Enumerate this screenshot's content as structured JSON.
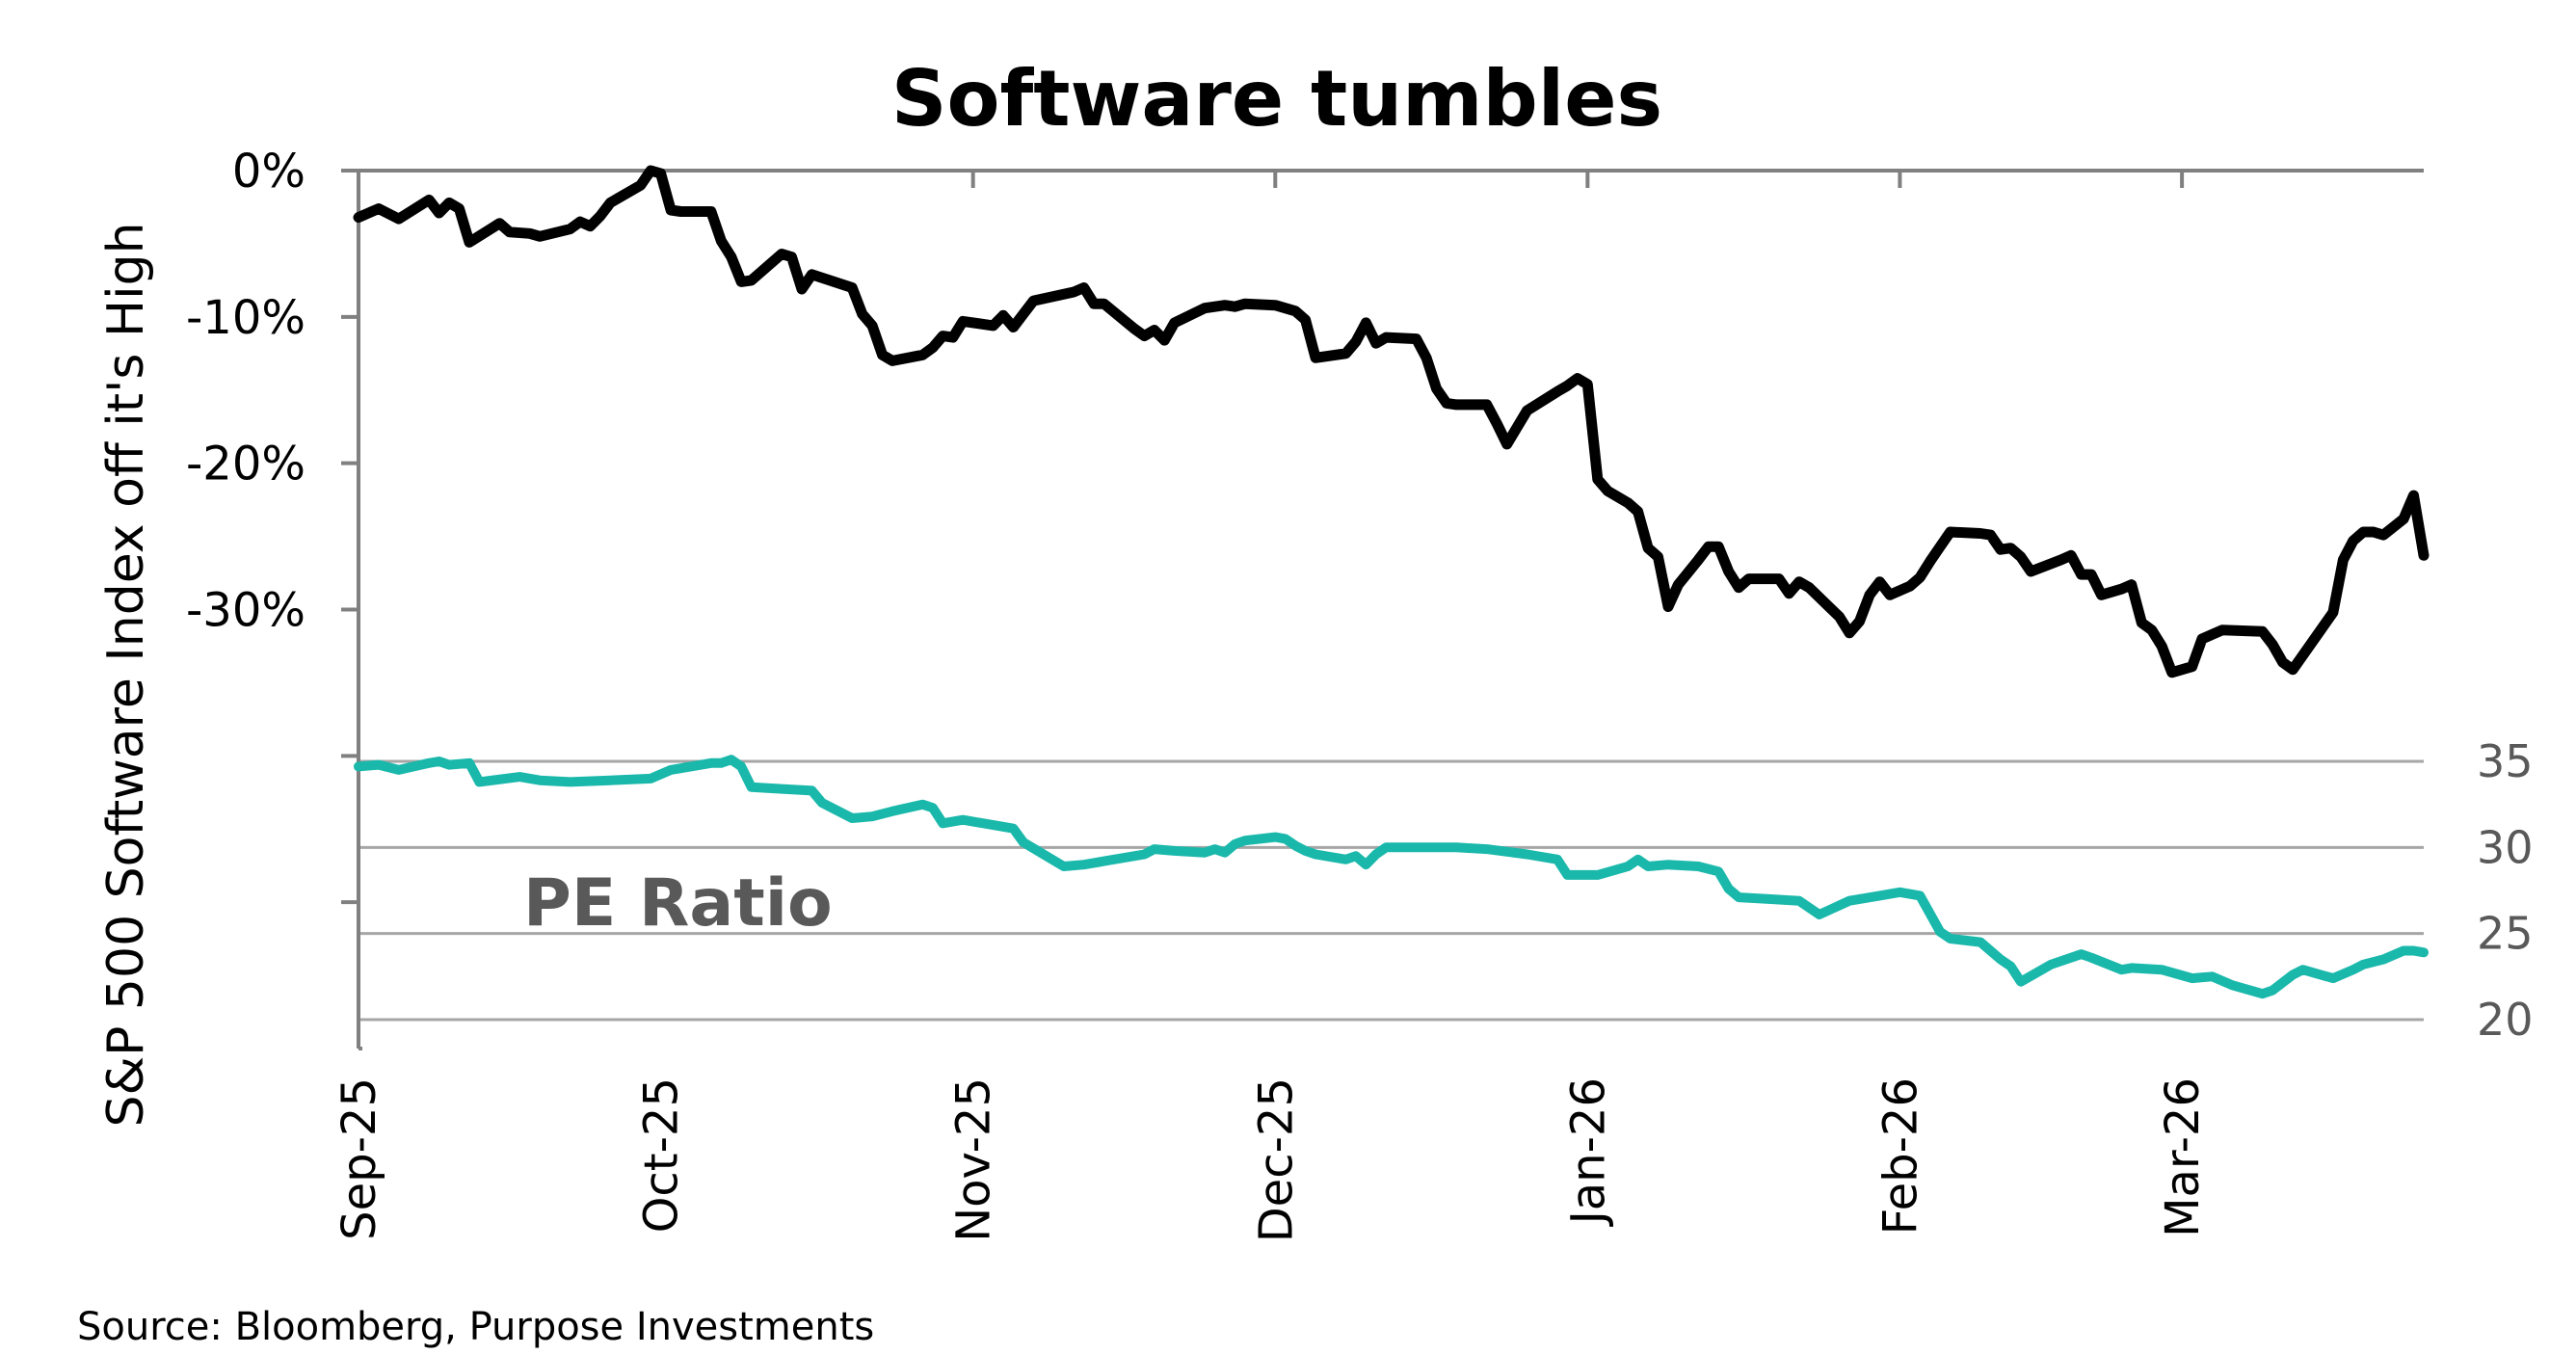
{
  "chart_data": {
    "type": "line",
    "title": "Software tumbles",
    "ylabel": "S&P 500 Software Index off it's High",
    "source": "Source: Bloomberg, Purpose Investments",
    "annotation": "PE Ratio",
    "x_tick_labels": [
      "Sep-25",
      "Oct-25",
      "Nov-25",
      "Dec-25",
      "Jan-26",
      "Feb-26",
      "Mar-26"
    ],
    "x_tick_dates": [
      "2025-09-01",
      "2025-10-01",
      "2025-11-01",
      "2025-12-01",
      "2026-01-01",
      "2026-02-01",
      "2026-03-01"
    ],
    "x_range": [
      "2025-09-01",
      "2026-03-25"
    ],
    "y_left": {
      "ticks": [
        0,
        -10,
        -20,
        -30
      ],
      "tick_labels": [
        "0%",
        "-10%",
        "-20%",
        "-30%"
      ],
      "range": [
        -60,
        0
      ]
    },
    "y_right": {
      "ticks": [
        20,
        25,
        30,
        35
      ],
      "tick_labels": [
        "20",
        "25",
        "30",
        "35"
      ]
    },
    "grid": "horizontal lines at right-axis ticks",
    "series": [
      {
        "color": "#000000",
        "axis": "left",
        "points": [
          [
            "2025-09-01",
            -3.2
          ],
          [
            "2025-09-03",
            -2.6
          ],
          [
            "2025-09-05",
            -3.3
          ],
          [
            "2025-09-08",
            -2.0
          ],
          [
            "2025-09-09",
            -2.9
          ],
          [
            "2025-09-10",
            -2.2
          ],
          [
            "2025-09-11",
            -2.6
          ],
          [
            "2025-09-12",
            -4.9
          ],
          [
            "2025-09-15",
            -3.6
          ],
          [
            "2025-09-16",
            -4.2
          ],
          [
            "2025-09-18",
            -4.3
          ],
          [
            "2025-09-19",
            -4.5
          ],
          [
            "2025-09-22",
            -4.0
          ],
          [
            "2025-09-23",
            -3.5
          ],
          [
            "2025-09-24",
            -3.8
          ],
          [
            "2025-09-25",
            -3.1
          ],
          [
            "2025-09-26",
            -2.2
          ],
          [
            "2025-09-29",
            -1.0
          ],
          [
            "2025-09-30",
            0.0
          ],
          [
            "2025-10-01",
            -0.2
          ],
          [
            "2025-10-02",
            -2.7
          ],
          [
            "2025-10-03",
            -2.8
          ],
          [
            "2025-10-06",
            -2.8
          ],
          [
            "2025-10-07",
            -4.8
          ],
          [
            "2025-10-08",
            -5.9
          ],
          [
            "2025-10-09",
            -7.6
          ],
          [
            "2025-10-10",
            -7.5
          ],
          [
            "2025-10-13",
            -5.7
          ],
          [
            "2025-10-14",
            -5.9
          ],
          [
            "2025-10-15",
            -8.1
          ],
          [
            "2025-10-16",
            -7.1
          ],
          [
            "2025-10-20",
            -8.0
          ],
          [
            "2025-10-21",
            -9.8
          ],
          [
            "2025-10-22",
            -10.6
          ],
          [
            "2025-10-23",
            -12.6
          ],
          [
            "2025-10-24",
            -13.0
          ],
          [
            "2025-10-27",
            -12.6
          ],
          [
            "2025-10-28",
            -12.1
          ],
          [
            "2025-10-29",
            -11.3
          ],
          [
            "2025-10-30",
            -11.4
          ],
          [
            "2025-10-31",
            -10.3
          ],
          [
            "2025-11-03",
            -10.6
          ],
          [
            "2025-11-04",
            -9.9
          ],
          [
            "2025-11-05",
            -10.7
          ],
          [
            "2025-11-06",
            -9.8
          ],
          [
            "2025-11-07",
            -8.9
          ],
          [
            "2025-11-11",
            -8.3
          ],
          [
            "2025-11-12",
            -8.0
          ],
          [
            "2025-11-13",
            -9.1
          ],
          [
            "2025-11-14",
            -9.1
          ],
          [
            "2025-11-17",
            -10.8
          ],
          [
            "2025-11-18",
            -11.3
          ],
          [
            "2025-11-19",
            -10.9
          ],
          [
            "2025-11-20",
            -11.6
          ],
          [
            "2025-11-21",
            -10.4
          ],
          [
            "2025-11-24",
            -9.4
          ],
          [
            "2025-11-26",
            -9.2
          ],
          [
            "2025-11-27",
            -9.3
          ],
          [
            "2025-11-28",
            -9.1
          ],
          [
            "2025-12-01",
            -9.2
          ],
          [
            "2025-12-03",
            -9.6
          ],
          [
            "2025-12-04",
            -10.2
          ],
          [
            "2025-12-05",
            -12.8
          ],
          [
            "2025-12-08",
            -12.5
          ],
          [
            "2025-12-09",
            -11.7
          ],
          [
            "2025-12-10",
            -10.4
          ],
          [
            "2025-12-11",
            -11.8
          ],
          [
            "2025-12-12",
            -11.4
          ],
          [
            "2025-12-15",
            -11.5
          ],
          [
            "2025-12-16",
            -12.8
          ],
          [
            "2025-12-17",
            -14.9
          ],
          [
            "2025-12-18",
            -15.9
          ],
          [
            "2025-12-19",
            -16.0
          ],
          [
            "2025-12-22",
            -16.0
          ],
          [
            "2025-12-23",
            -17.3
          ],
          [
            "2025-12-24",
            -18.7
          ],
          [
            "2025-12-26",
            -16.4
          ],
          [
            "2025-12-29",
            -15.1
          ],
          [
            "2025-12-30",
            -14.7
          ],
          [
            "2025-12-31",
            -14.2
          ],
          [
            "2026-01-01",
            -14.6
          ],
          [
            "2026-01-02",
            -21.1
          ],
          [
            "2026-01-03",
            -21.9
          ],
          [
            "2026-01-05",
            -22.7
          ],
          [
            "2026-01-06",
            -23.3
          ],
          [
            "2026-01-07",
            -25.8
          ],
          [
            "2026-01-08",
            -26.4
          ],
          [
            "2026-01-09",
            -29.8
          ],
          [
            "2026-01-10",
            -28.3
          ],
          [
            "2026-01-12",
            -26.6
          ],
          [
            "2026-01-13",
            -25.7
          ],
          [
            "2026-01-14",
            -25.7
          ],
          [
            "2026-01-15",
            -27.4
          ],
          [
            "2026-01-16",
            -28.5
          ],
          [
            "2026-01-17",
            -27.9
          ],
          [
            "2026-01-20",
            -27.9
          ],
          [
            "2026-01-21",
            -28.9
          ],
          [
            "2026-01-22",
            -28.1
          ],
          [
            "2026-01-23",
            -28.5
          ],
          [
            "2026-01-26",
            -30.5
          ],
          [
            "2026-01-27",
            -31.6
          ],
          [
            "2026-01-28",
            -30.8
          ],
          [
            "2026-01-29",
            -29.0
          ],
          [
            "2026-01-30",
            -28.1
          ],
          [
            "2026-01-31",
            -29.0
          ],
          [
            "2026-02-02",
            -28.4
          ],
          [
            "2026-02-03",
            -27.8
          ],
          [
            "2026-02-04",
            -26.7
          ],
          [
            "2026-02-05",
            -25.7
          ],
          [
            "2026-02-06",
            -24.7
          ],
          [
            "2026-02-09",
            -24.8
          ],
          [
            "2026-02-10",
            -24.9
          ],
          [
            "2026-02-11",
            -25.9
          ],
          [
            "2026-02-12",
            -25.8
          ],
          [
            "2026-02-13",
            -26.4
          ],
          [
            "2026-02-14",
            -27.4
          ],
          [
            "2026-02-17",
            -26.6
          ],
          [
            "2026-02-18",
            -26.3
          ],
          [
            "2026-02-19",
            -27.6
          ],
          [
            "2026-02-20",
            -27.6
          ],
          [
            "2026-02-21",
            -29.0
          ],
          [
            "2026-02-23",
            -28.6
          ],
          [
            "2026-02-24",
            -28.3
          ],
          [
            "2026-02-25",
            -30.9
          ],
          [
            "2026-02-26",
            -31.4
          ],
          [
            "2026-02-27",
            -32.5
          ],
          [
            "2026-02-28",
            -34.3
          ],
          [
            "2026-03-02",
            -33.9
          ],
          [
            "2026-03-03",
            -32.0
          ],
          [
            "2026-03-04",
            -31.7
          ],
          [
            "2026-03-05",
            -31.4
          ],
          [
            "2026-03-09",
            -31.5
          ],
          [
            "2026-03-10",
            -32.4
          ],
          [
            "2026-03-11",
            -33.6
          ],
          [
            "2026-03-12",
            -34.1
          ],
          [
            "2026-03-16",
            -30.2
          ],
          [
            "2026-03-17",
            -26.6
          ],
          [
            "2026-03-18",
            -25.3
          ],
          [
            "2026-03-19",
            -24.7
          ],
          [
            "2026-03-20",
            -24.7
          ],
          [
            "2026-03-21",
            -24.9
          ],
          [
            "2026-03-23",
            -23.8
          ],
          [
            "2026-03-24",
            -22.2
          ],
          [
            "2026-03-25",
            -26.3
          ]
        ]
      },
      {
        "color": "#1ab8ab",
        "axis": "right",
        "points": [
          [
            "2025-09-01",
            34.7
          ],
          [
            "2025-09-03",
            34.8
          ],
          [
            "2025-09-05",
            34.5
          ],
          [
            "2025-09-08",
            34.9
          ],
          [
            "2025-09-09",
            35.0
          ],
          [
            "2025-09-10",
            34.8
          ],
          [
            "2025-09-12",
            34.9
          ],
          [
            "2025-09-13",
            33.8
          ],
          [
            "2025-09-17",
            34.1
          ],
          [
            "2025-09-19",
            33.9
          ],
          [
            "2025-09-22",
            33.8
          ],
          [
            "2025-09-26",
            33.9
          ],
          [
            "2025-09-30",
            34.0
          ],
          [
            "2025-10-02",
            34.5
          ],
          [
            "2025-10-06",
            34.9
          ],
          [
            "2025-10-07",
            34.9
          ],
          [
            "2025-10-08",
            35.1
          ],
          [
            "2025-10-09",
            34.7
          ],
          [
            "2025-10-10",
            33.5
          ],
          [
            "2025-10-13",
            33.4
          ],
          [
            "2025-10-16",
            33.3
          ],
          [
            "2025-10-17",
            32.6
          ],
          [
            "2025-10-20",
            31.7
          ],
          [
            "2025-10-22",
            31.8
          ],
          [
            "2025-10-24",
            32.1
          ],
          [
            "2025-10-27",
            32.5
          ],
          [
            "2025-10-28",
            32.3
          ],
          [
            "2025-10-29",
            31.4
          ],
          [
            "2025-10-31",
            31.6
          ],
          [
            "2025-11-03",
            31.3
          ],
          [
            "2025-11-05",
            31.1
          ],
          [
            "2025-11-06",
            30.3
          ],
          [
            "2025-11-10",
            28.9
          ],
          [
            "2025-11-12",
            29.0
          ],
          [
            "2025-11-14",
            29.2
          ],
          [
            "2025-11-18",
            29.6
          ],
          [
            "2025-11-19",
            29.9
          ],
          [
            "2025-11-21",
            29.8
          ],
          [
            "2025-11-24",
            29.7
          ],
          [
            "2025-11-25",
            29.9
          ],
          [
            "2025-11-26",
            29.7
          ],
          [
            "2025-11-27",
            30.2
          ],
          [
            "2025-11-28",
            30.4
          ],
          [
            "2025-12-01",
            30.6
          ],
          [
            "2025-12-02",
            30.5
          ],
          [
            "2025-12-03",
            30.1
          ],
          [
            "2025-12-04",
            29.8
          ],
          [
            "2025-12-05",
            29.6
          ],
          [
            "2025-12-08",
            29.3
          ],
          [
            "2025-12-09",
            29.5
          ],
          [
            "2025-12-10",
            29.0
          ],
          [
            "2025-12-11",
            29.6
          ],
          [
            "2025-12-12",
            30.0
          ],
          [
            "2025-12-15",
            30.0
          ],
          [
            "2025-12-17",
            30.0
          ],
          [
            "2025-12-19",
            30.0
          ],
          [
            "2025-12-22",
            29.9
          ],
          [
            "2025-12-26",
            29.6
          ],
          [
            "2025-12-29",
            29.3
          ],
          [
            "2025-12-30",
            28.4
          ],
          [
            "2026-01-02",
            28.4
          ],
          [
            "2026-01-05",
            28.9
          ],
          [
            "2026-01-06",
            29.3
          ],
          [
            "2026-01-07",
            28.9
          ],
          [
            "2026-01-09",
            29.0
          ],
          [
            "2026-01-12",
            28.9
          ],
          [
            "2026-01-14",
            28.6
          ],
          [
            "2026-01-15",
            27.6
          ],
          [
            "2026-01-16",
            27.1
          ],
          [
            "2026-01-19",
            27.0
          ],
          [
            "2026-01-22",
            26.9
          ],
          [
            "2026-01-24",
            26.1
          ],
          [
            "2026-01-27",
            26.9
          ],
          [
            "2026-01-30",
            27.2
          ],
          [
            "2026-02-01",
            27.4
          ],
          [
            "2026-02-03",
            27.2
          ],
          [
            "2026-02-05",
            25.1
          ],
          [
            "2026-02-06",
            24.7
          ],
          [
            "2026-02-09",
            24.5
          ],
          [
            "2026-02-11",
            23.5
          ],
          [
            "2026-02-12",
            23.1
          ],
          [
            "2026-02-13",
            22.2
          ],
          [
            "2026-02-16",
            23.2
          ],
          [
            "2026-02-19",
            23.8
          ],
          [
            "2026-02-20",
            23.6
          ],
          [
            "2026-02-23",
            22.9
          ],
          [
            "2026-02-24",
            23.0
          ],
          [
            "2026-02-27",
            22.9
          ],
          [
            "2026-03-02",
            22.4
          ],
          [
            "2026-03-04",
            22.5
          ],
          [
            "2026-03-06",
            22.0
          ],
          [
            "2026-03-09",
            21.5
          ],
          [
            "2026-03-10",
            21.7
          ],
          [
            "2026-03-12",
            22.6
          ],
          [
            "2026-03-13",
            22.9
          ],
          [
            "2026-03-16",
            22.4
          ],
          [
            "2026-03-18",
            22.9
          ],
          [
            "2026-03-19",
            23.2
          ],
          [
            "2026-03-21",
            23.5
          ],
          [
            "2026-03-23",
            24.0
          ],
          [
            "2026-03-24",
            24.0
          ],
          [
            "2026-03-25",
            23.9
          ]
        ]
      }
    ]
  }
}
